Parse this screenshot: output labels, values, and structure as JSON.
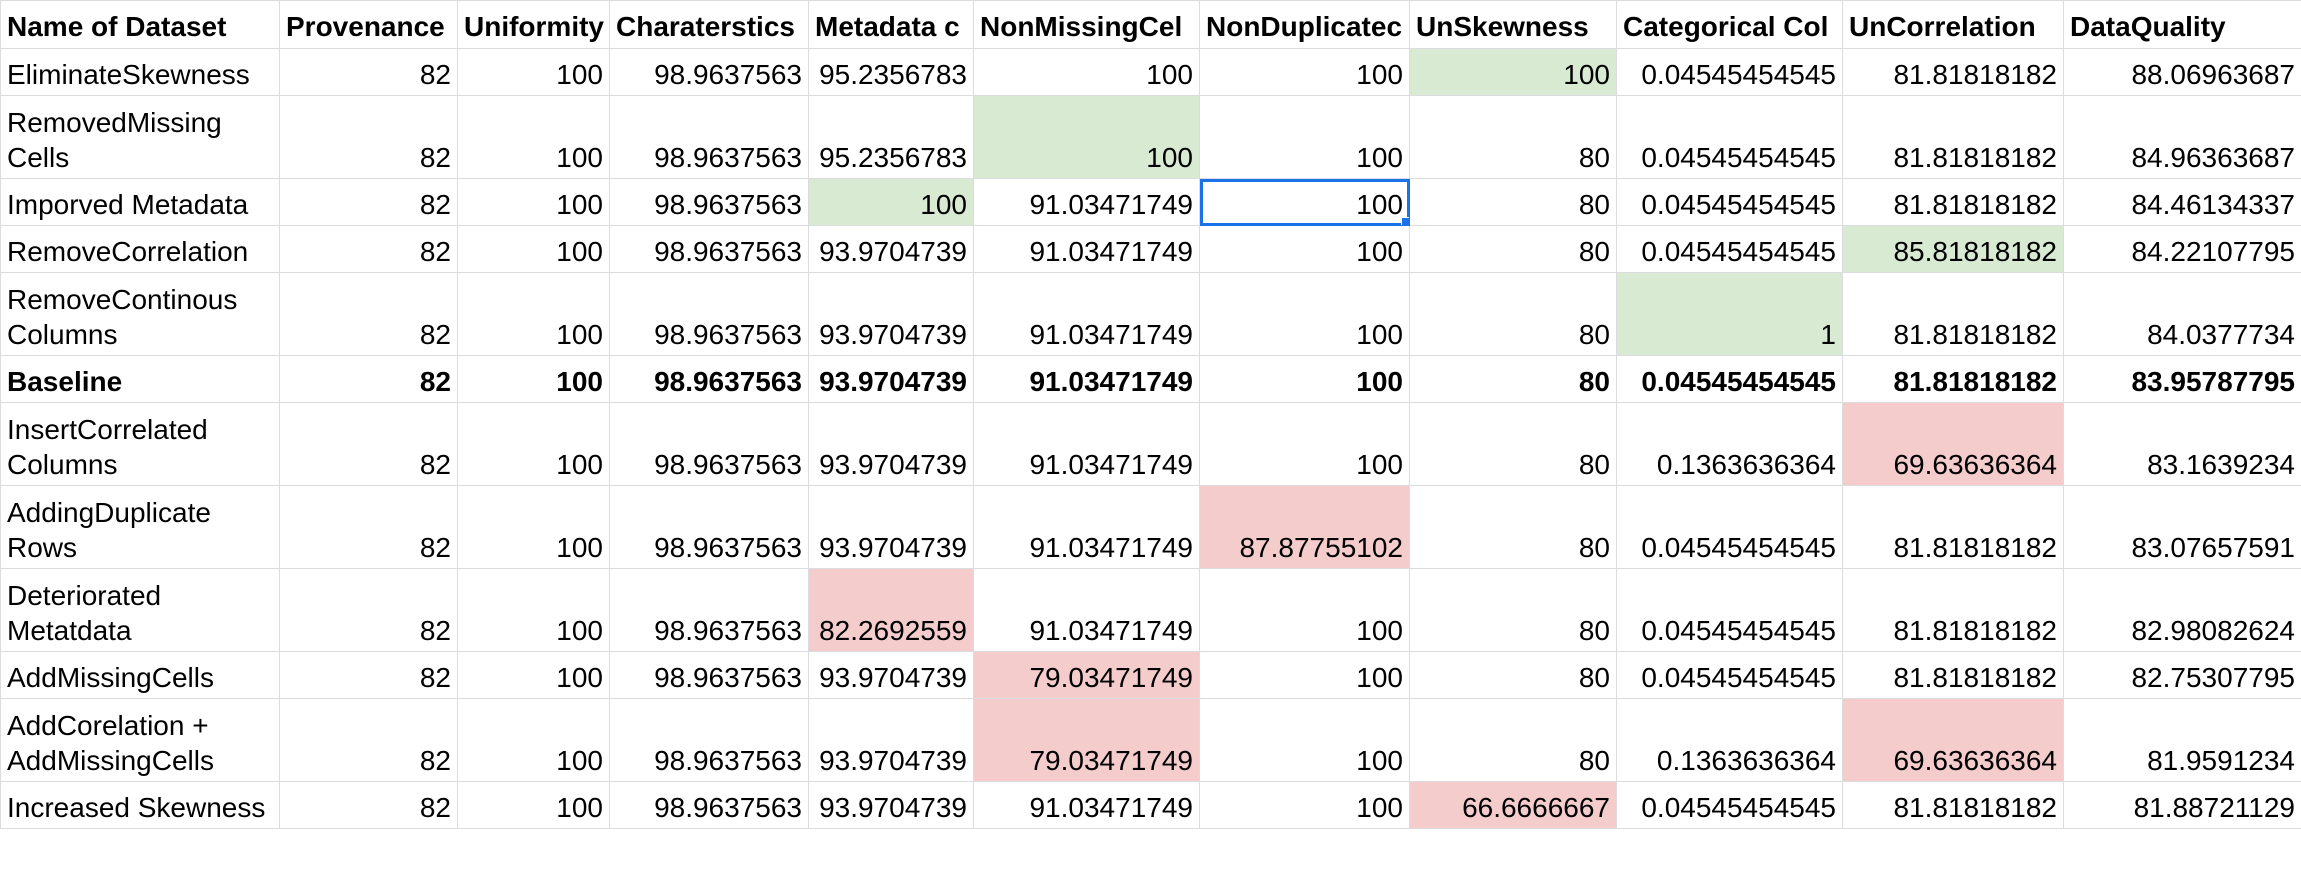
{
  "colors": {
    "improved_fill": "#d9ead3",
    "deteriorated_fill": "#f4cccc",
    "selection_border": "#1a73e8",
    "gridline": "#dadce0"
  },
  "selected_cell": {
    "row": 2,
    "col": 6
  },
  "headers": [
    "Name of Dataset",
    "Provenance",
    "Uniformity",
    "Charaterstics",
    "Metadata c",
    "NonMissingCel",
    "NonDuplicatec",
    "UnSkewness",
    "Categorical Col",
    "UnCorrelation",
    "DataQuality"
  ],
  "rows": [
    {
      "name": "EliminateSkewness",
      "values": [
        "82",
        "100",
        "98.9637563",
        "95.2356783",
        "100",
        "100",
        "100",
        "0.04545454545",
        "81.81818182",
        "88.06963687"
      ],
      "highlight": {
        "7": "green"
      },
      "bold": false
    },
    {
      "name": "RemovedMissing Cells",
      "values": [
        "82",
        "100",
        "98.9637563",
        "95.2356783",
        "100",
        "100",
        "80",
        "0.04545454545",
        "81.81818182",
        "84.96363687"
      ],
      "highlight": {
        "5": "green"
      },
      "bold": false
    },
    {
      "name": "Imporved Metadata",
      "values": [
        "82",
        "100",
        "98.9637563",
        "100",
        "91.03471749",
        "100",
        "80",
        "0.04545454545",
        "81.81818182",
        "84.46134337"
      ],
      "highlight": {
        "4": "green"
      },
      "bold": false
    },
    {
      "name": "RemoveCorrelation",
      "values": [
        "82",
        "100",
        "98.9637563",
        "93.9704739",
        "91.03471749",
        "100",
        "80",
        "0.04545454545",
        "85.81818182",
        "84.22107795"
      ],
      "highlight": {
        "9": "green"
      },
      "bold": false
    },
    {
      "name": "RemoveContinous Columns",
      "values": [
        "82",
        "100",
        "98.9637563",
        "93.9704739",
        "91.03471749",
        "100",
        "80",
        "1",
        "81.81818182",
        "84.0377734"
      ],
      "highlight": {
        "8": "green"
      },
      "bold": false
    },
    {
      "name": "Baseline",
      "values": [
        "82",
        "100",
        "98.9637563",
        "93.9704739",
        "91.03471749",
        "100",
        "80",
        "0.04545454545",
        "81.81818182",
        "83.95787795"
      ],
      "highlight": {},
      "bold": true
    },
    {
      "name": "InsertCorrelated Columns",
      "values": [
        "82",
        "100",
        "98.9637563",
        "93.9704739",
        "91.03471749",
        "100",
        "80",
        "0.1363636364",
        "69.63636364",
        "83.1639234"
      ],
      "highlight": {
        "9": "red"
      },
      "bold": false
    },
    {
      "name": "AddingDuplicate Rows",
      "values": [
        "82",
        "100",
        "98.9637563",
        "93.9704739",
        "91.03471749",
        "87.87755102",
        "80",
        "0.04545454545",
        "81.81818182",
        "83.07657591"
      ],
      "highlight": {
        "6": "red"
      },
      "bold": false
    },
    {
      "name": "Deteriorated Metatdata",
      "values": [
        "82",
        "100",
        "98.9637563",
        "82.2692559",
        "91.03471749",
        "100",
        "80",
        "0.04545454545",
        "81.81818182",
        "82.98082624"
      ],
      "highlight": {
        "4": "red"
      },
      "bold": false
    },
    {
      "name": "AddMissingCells",
      "values": [
        "82",
        "100",
        "98.9637563",
        "93.9704739",
        "79.03471749",
        "100",
        "80",
        "0.04545454545",
        "81.81818182",
        "82.75307795"
      ],
      "highlight": {
        "5": "red"
      },
      "bold": false
    },
    {
      "name": "AddCorelation + AddMissingCells",
      "values": [
        "82",
        "100",
        "98.9637563",
        "93.9704739",
        "79.03471749",
        "100",
        "80",
        "0.1363636364",
        "69.63636364",
        "81.9591234"
      ],
      "highlight": {
        "5": "red",
        "9": "red"
      },
      "bold": false
    },
    {
      "name": "Increased Skewness",
      "values": [
        "82",
        "100",
        "98.9637563",
        "93.9704739",
        "91.03471749",
        "100",
        "66.6666667",
        "0.04545454545",
        "81.81818182",
        "81.88721129"
      ],
      "highlight": {
        "7": "red"
      },
      "bold": false
    }
  ]
}
